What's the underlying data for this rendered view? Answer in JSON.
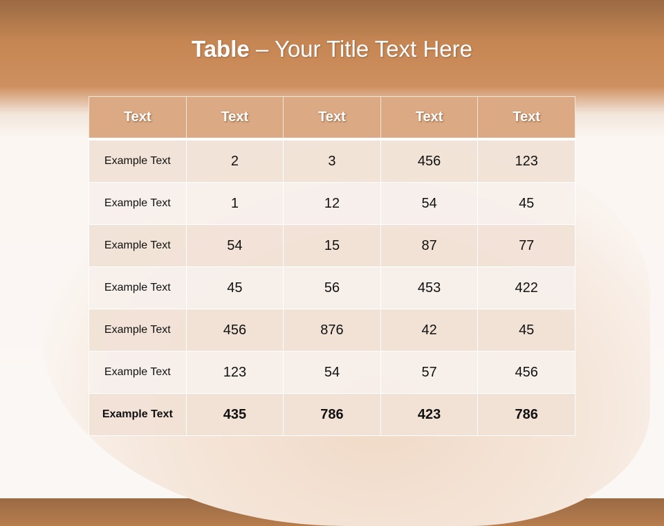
{
  "title": {
    "bold": "Table",
    "rest": " – Your Title Text Here"
  },
  "table": {
    "headers": [
      "Text",
      "Text",
      "Text",
      "Text",
      "Text"
    ],
    "rows": [
      [
        "Example Text",
        "2",
        "3",
        "456",
        "123"
      ],
      [
        "Example Text",
        "1",
        "12",
        "54",
        "45"
      ],
      [
        "Example Text",
        "54",
        "15",
        "87",
        "77"
      ],
      [
        "Example Text",
        "45",
        "56",
        "453",
        "422"
      ],
      [
        "Example Text",
        "456",
        "876",
        "42",
        "45"
      ],
      [
        "Example Text",
        "123",
        "54",
        "57",
        "456"
      ],
      [
        "Example Text",
        "435",
        "786",
        "423",
        "786"
      ]
    ]
  },
  "colors": {
    "header": "#dba983",
    "title_band": "#c58653",
    "row_odd": "#f1e1d6",
    "row_even": "#f7efeb"
  }
}
